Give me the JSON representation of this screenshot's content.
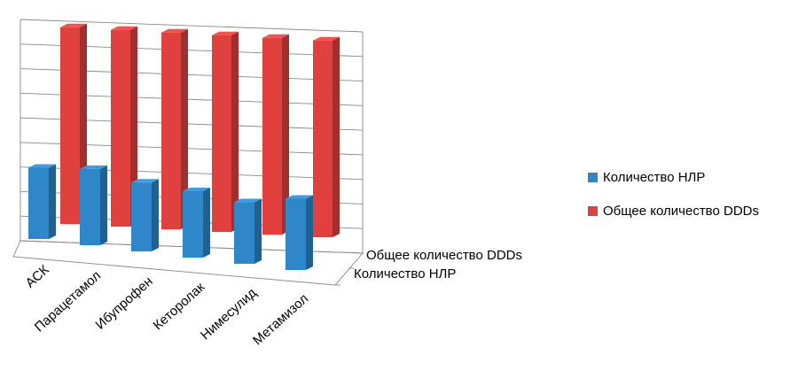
{
  "chart_data": {
    "type": "bar",
    "categories": [
      "АСК",
      "Парацетамол",
      "Ибупрофен",
      "Кеторолак",
      "Нимесулид",
      "Метамизол"
    ],
    "series": [
      {
        "name": "Количество НЛР",
        "values": [
          29,
          31,
          28,
          27,
          25,
          29
        ],
        "color": "#2f86c8"
      },
      {
        "name": "Общее количество DDDs",
        "values": [
          80,
          80,
          80,
          80,
          80,
          80
        ],
        "color": "#e0413e"
      }
    ],
    "depth_labels": [
      "Общее количество DDDs",
      "Количество НЛР"
    ],
    "ylim": [
      0,
      90
    ],
    "grid": true,
    "legend_position": "right",
    "projection": "3d-perspective"
  }
}
